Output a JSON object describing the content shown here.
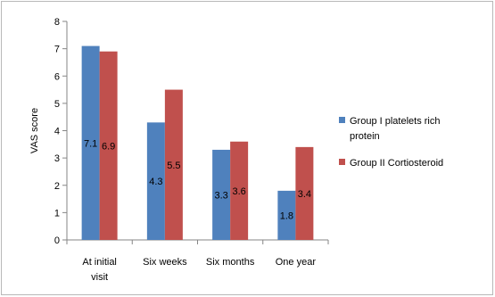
{
  "chart_data": {
    "type": "bar",
    "title": "",
    "xlabel": "",
    "ylabel": "VAS score",
    "ylim": [
      0,
      8
    ],
    "yticks": [
      0,
      1,
      2,
      3,
      4,
      5,
      6,
      7,
      8
    ],
    "grid": false,
    "legend_position": "right",
    "categories": [
      [
        "At initial",
        "visit"
      ],
      [
        "Six weeks"
      ],
      [
        "Six months"
      ],
      [
        "One year"
      ]
    ],
    "series": [
      {
        "name_lines": [
          "Group I platelets rich",
          "protein"
        ],
        "color": "#4F81BD",
        "values": [
          7.1,
          4.3,
          3.3,
          1.8
        ],
        "labels": [
          "7.1",
          "4.3",
          "3.3",
          "1.8"
        ]
      },
      {
        "name_lines": [
          "Group II Cortiosteroid"
        ],
        "color": "#C0504D",
        "values": [
          6.9,
          5.5,
          3.6,
          3.4
        ],
        "labels": [
          "6.9",
          "5.5",
          "3.6",
          "3.4"
        ]
      }
    ]
  }
}
